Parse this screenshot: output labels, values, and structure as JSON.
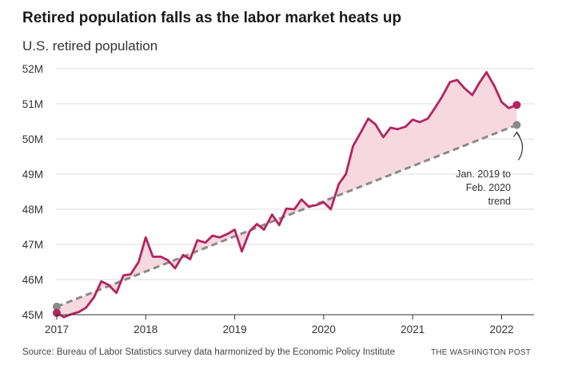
{
  "chart_data": {
    "type": "line",
    "title": "Retired population falls as the labor market heats up",
    "subtitle": "U.S. retired population",
    "ylabel": "",
    "xlabel": "",
    "xlim": [
      2017,
      2022.25
    ],
    "ylim": [
      45,
      52
    ],
    "x_ticks": [
      2017,
      2018,
      2019,
      2020,
      2021,
      2022
    ],
    "x_tick_labels": [
      "2017",
      "2018",
      "2019",
      "2020",
      "2021",
      "2022"
    ],
    "y_ticks": [
      45,
      46,
      47,
      48,
      49,
      50,
      51,
      52
    ],
    "y_tick_labels": [
      "45M",
      "46M",
      "47M",
      "48M",
      "49M",
      "50M",
      "51M",
      "52M"
    ],
    "grid": true,
    "series": [
      {
        "name": "Retired population",
        "color": "#b5245c",
        "x": [
          2017.0,
          2017.08,
          2017.17,
          2017.25,
          2017.33,
          2017.42,
          2017.5,
          2017.58,
          2017.67,
          2017.75,
          2017.83,
          2017.92,
          2018.0,
          2018.08,
          2018.17,
          2018.25,
          2018.33,
          2018.42,
          2018.5,
          2018.58,
          2018.67,
          2018.75,
          2018.83,
          2018.92,
          2019.0,
          2019.08,
          2019.17,
          2019.25,
          2019.33,
          2019.42,
          2019.5,
          2019.58,
          2019.67,
          2019.75,
          2019.83,
          2019.92,
          2020.0,
          2020.08,
          2020.17,
          2020.25,
          2020.33,
          2020.42,
          2020.5,
          2020.58,
          2020.67,
          2020.75,
          2020.83,
          2020.92,
          2021.0,
          2021.08,
          2021.17,
          2021.25,
          2021.33,
          2021.42,
          2021.5,
          2021.58,
          2021.67,
          2021.75,
          2021.83,
          2021.92,
          2022.0,
          2022.08,
          2022.17
        ],
        "values": [
          45.05,
          44.93,
          45.02,
          45.08,
          45.2,
          45.5,
          45.95,
          45.85,
          45.62,
          46.12,
          46.15,
          46.5,
          47.2,
          46.65,
          46.65,
          46.55,
          46.32,
          46.7,
          46.58,
          47.12,
          47.05,
          47.25,
          47.2,
          47.3,
          47.42,
          46.8,
          47.38,
          47.58,
          47.42,
          47.85,
          47.55,
          48.02,
          48.0,
          48.28,
          48.08,
          48.12,
          48.2,
          48.0,
          48.72,
          49.0,
          49.8,
          50.2,
          50.58,
          50.42,
          50.05,
          50.32,
          50.28,
          50.35,
          50.55,
          50.48,
          50.58,
          50.88,
          51.2,
          51.62,
          51.68,
          51.45,
          51.25,
          51.6,
          51.9,
          51.5,
          51.05,
          50.88,
          50.97
        ]
      },
      {
        "name": "Jan. 2019 to Feb. 2020 trend",
        "color": "#8a8a8a",
        "style": "dashed",
        "x": [
          2017.0,
          2022.17
        ],
        "values": [
          45.23,
          50.4
        ]
      }
    ],
    "annotations": [
      {
        "lines": [
          "Jan. 2019 to",
          "Feb. 2020",
          "trend"
        ],
        "points_to": [
          2022.17,
          50.4
        ]
      }
    ],
    "colors": {
      "line": "#b5245c",
      "fill": "#f6d8e0",
      "trend": "#8a8a8a",
      "grid": "#dcdcdc",
      "axis": "#333333"
    }
  },
  "source": "Source: Bureau of Labor Statistics survey data harmonized by the Economic Policy Institute",
  "credit": "THE WASHINGTON POST"
}
